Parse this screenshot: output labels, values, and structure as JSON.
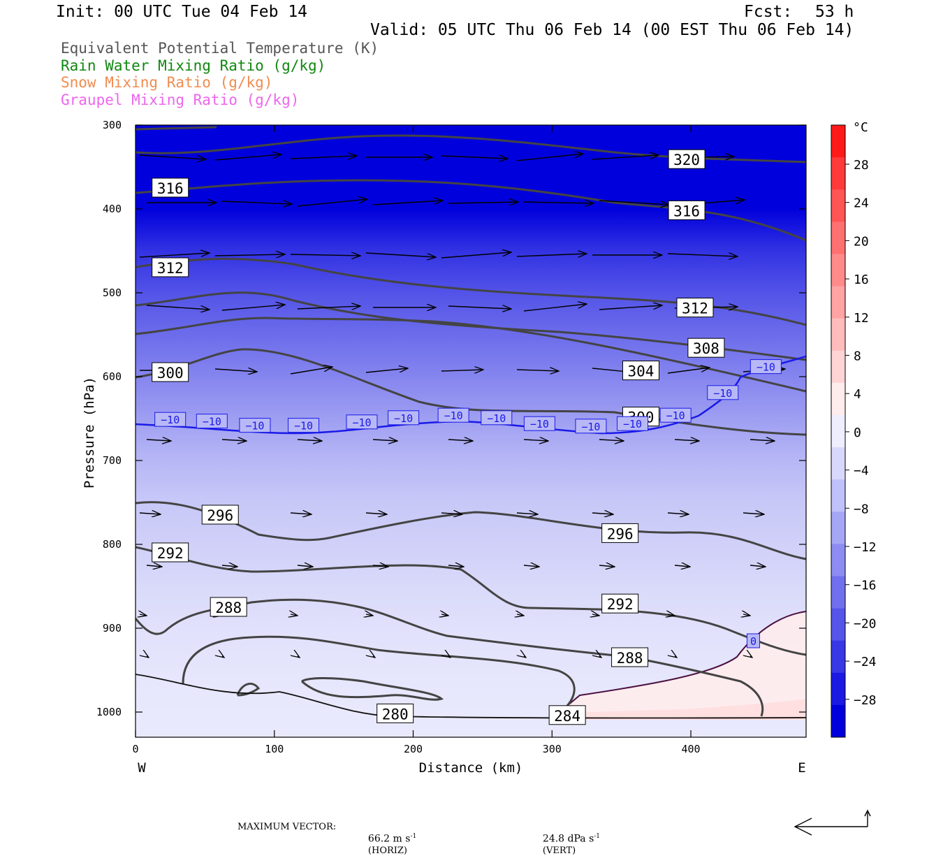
{
  "header": {
    "init": "Init: 00 UTC Tue 04 Feb 14",
    "fcst_label": "Fcst:",
    "fcst_value": "53 h",
    "valid": "Valid: 05 UTC Thu 06 Feb 14 (00 EST Thu 06 Feb 14)"
  },
  "legend": [
    {
      "text": "Equivalent Potential Temperature (K)",
      "color": "#555555"
    },
    {
      "text": "Rain Water Mixing Ratio (g/kg)",
      "color": "#118811"
    },
    {
      "text": "Snow Mixing Ratio (g/kg)",
      "color": "#f08c50"
    },
    {
      "text": "Graupel Mixing Ratio (g/kg)",
      "color": "#ee66ee"
    }
  ],
  "footer": {
    "max_vector_label": "MAXIMUM VECTOR:",
    "horiz_value": "66.2 m s",
    "horiz_exp": "-1",
    "horiz_tag": "(HORIZ)",
    "vert_value": "24.8 dPa s",
    "vert_exp": "-1",
    "vert_tag": "(VERT)"
  },
  "chart_data": {
    "type": "cross-section",
    "xlabel": "Distance (km)",
    "ylabel": "Pressure (hPa)",
    "xlim": [
      0,
      483
    ],
    "ylim": [
      1030,
      300
    ],
    "x_ticks": [
      0,
      100,
      200,
      300,
      400
    ],
    "y_ticks": [
      300,
      400,
      500,
      600,
      700,
      800,
      900,
      1000
    ],
    "x_end_labels": {
      "left": "W",
      "right": "E"
    },
    "colorbar": {
      "unit": "°C",
      "labels": [
        "28",
        "24",
        "20",
        "16",
        "12",
        "8",
        "4",
        "0",
        "−4",
        "−8",
        "−12",
        "−16",
        "−20",
        "−24",
        "−28"
      ],
      "colors": [
        "#ff1a1a",
        "#ff3a3a",
        "#ff5555",
        "#ff7070",
        "#ff8a8a",
        "#ffa3a3",
        "#ffbcbc",
        "#ffd4d4",
        "#ffecec",
        "#eeeeff",
        "#d8d8fd",
        "#c0c0fa",
        "#a6a6f6",
        "#8c8cf2",
        "#7070ee",
        "#5555ea",
        "#3838e6",
        "#1a1ae2",
        "#0000dd"
      ]
    },
    "temperature_fill": [
      {
        "p": 300,
        "t": -30
      },
      {
        "p": 400,
        "t": -30
      },
      {
        "p": 450,
        "t": -24
      },
      {
        "p": 500,
        "t": -20
      },
      {
        "p": 550,
        "t": -17
      },
      {
        "p": 600,
        "t": -14
      },
      {
        "p": 650,
        "t": -11
      },
      {
        "p": 700,
        "t": -8
      },
      {
        "p": 750,
        "t": -6
      },
      {
        "p": 800,
        "t": -5
      },
      {
        "p": 850,
        "t": -4
      },
      {
        "p": 900,
        "t": -3
      },
      {
        "p": 1000,
        "t": -2
      }
    ],
    "theta_e_labels": [
      {
        "text": "316",
        "x": 25,
        "p": 375
      },
      {
        "text": "320",
        "x": 397,
        "p": 341
      },
      {
        "text": "316",
        "x": 397,
        "p": 402
      },
      {
        "text": "312",
        "x": 25,
        "p": 470
      },
      {
        "text": "312",
        "x": 403,
        "p": 518
      },
      {
        "text": "308",
        "x": 411,
        "p": 566
      },
      {
        "text": "300",
        "x": 25,
        "p": 595
      },
      {
        "text": "304",
        "x": 364,
        "p": 593
      },
      {
        "text": "300",
        "x": 364,
        "p": 648
      },
      {
        "text": "296",
        "x": 61,
        "p": 765
      },
      {
        "text": "296",
        "x": 349,
        "p": 787
      },
      {
        "text": "292",
        "x": 25,
        "p": 810
      },
      {
        "text": "288",
        "x": 67,
        "p": 875
      },
      {
        "text": "292",
        "x": 349,
        "p": 871
      },
      {
        "text": "288",
        "x": 356,
        "p": 935
      },
      {
        "text": "280",
        "x": 187,
        "p": 1002
      },
      {
        "text": "284",
        "x": 311,
        "p": 1004
      }
    ],
    "isotherm_labels": [
      {
        "text": "−10",
        "x": 25,
        "p": 651
      },
      {
        "text": "−10",
        "x": 55,
        "p": 653
      },
      {
        "text": "−10",
        "x": 86,
        "p": 658
      },
      {
        "text": "−10",
        "x": 121,
        "p": 658
      },
      {
        "text": "−10",
        "x": 163,
        "p": 654
      },
      {
        "text": "−10",
        "x": 193,
        "p": 649
      },
      {
        "text": "−10",
        "x": 229,
        "p": 646
      },
      {
        "text": "−10",
        "x": 260,
        "p": 649
      },
      {
        "text": "−10",
        "x": 291,
        "p": 656
      },
      {
        "text": "−10",
        "x": 328,
        "p": 659
      },
      {
        "text": "−10",
        "x": 358,
        "p": 656
      },
      {
        "text": "−10",
        "x": 389,
        "p": 646
      },
      {
        "text": "−10",
        "x": 423,
        "p": 619
      },
      {
        "text": "−10",
        "x": 454,
        "p": 588
      },
      {
        "text": "0",
        "x": 445,
        "p": 915
      }
    ]
  }
}
